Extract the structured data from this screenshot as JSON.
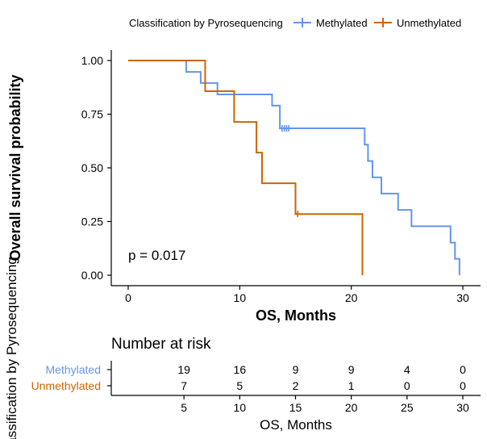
{
  "chart_data": {
    "type": "line",
    "subtype": "kaplan-meier",
    "legend": {
      "title": "Classification by Pyrosequencing",
      "placement": "top",
      "entries": [
        "Methylated",
        "Unmethylated"
      ]
    },
    "xlabel": "OS, Months",
    "ylabel": "Overall survival probability",
    "xlim": [
      0,
      30
    ],
    "ylim": [
      0,
      1
    ],
    "x_ticks": [
      0,
      10,
      20,
      30
    ],
    "y_ticks": [
      0.0,
      0.25,
      0.5,
      0.75,
      1.0
    ],
    "y_tick_labels": [
      "0.00",
      "0.25",
      "0.50",
      "0.75",
      "1.00"
    ],
    "annotation": "p = 0.017",
    "grid": false,
    "series": [
      {
        "name": "Methylated",
        "color": "#6495ED",
        "steps": [
          [
            0,
            1.0
          ],
          [
            5.2,
            0.947
          ],
          [
            6.5,
            0.895
          ],
          [
            8.0,
            0.842
          ],
          [
            12.9,
            0.79
          ],
          [
            13.6,
            0.684
          ],
          [
            21.2,
            0.608
          ],
          [
            21.5,
            0.532
          ],
          [
            21.9,
            0.456
          ],
          [
            22.7,
            0.38
          ],
          [
            24.2,
            0.304
          ],
          [
            25.4,
            0.228
          ],
          [
            28.9,
            0.152
          ],
          [
            29.3,
            0.076
          ],
          [
            29.7,
            0.0
          ]
        ],
        "end": 29.7,
        "censored": [
          [
            13.8,
            0.684
          ],
          [
            14.0,
            0.684
          ],
          [
            14.2,
            0.684
          ],
          [
            14.4,
            0.684
          ]
        ]
      },
      {
        "name": "Unmethylated",
        "color": "#CC6600",
        "steps": [
          [
            0,
            1.0
          ],
          [
            6.9,
            0.857
          ],
          [
            9.5,
            0.714
          ],
          [
            11.5,
            0.571
          ],
          [
            12.0,
            0.428
          ],
          [
            15.0,
            0.285
          ],
          [
            21.0,
            0.0
          ]
        ],
        "end": 21.0,
        "censored": [
          [
            15.2,
            0.285
          ]
        ]
      }
    ]
  },
  "risk_table": {
    "title": "Number at risk",
    "xlabel": "OS, Months",
    "ylabel": "Classification by Pyrosequencing",
    "x_ticks": [
      5,
      10,
      15,
      20,
      25,
      30
    ],
    "rows": [
      {
        "name": "Methylated",
        "color": "#6495ED",
        "values": [
          19,
          16,
          9,
          9,
          4,
          0
        ]
      },
      {
        "name": "Unmethylated",
        "color": "#CC6600",
        "values": [
          7,
          5,
          2,
          1,
          0,
          0
        ]
      }
    ]
  }
}
